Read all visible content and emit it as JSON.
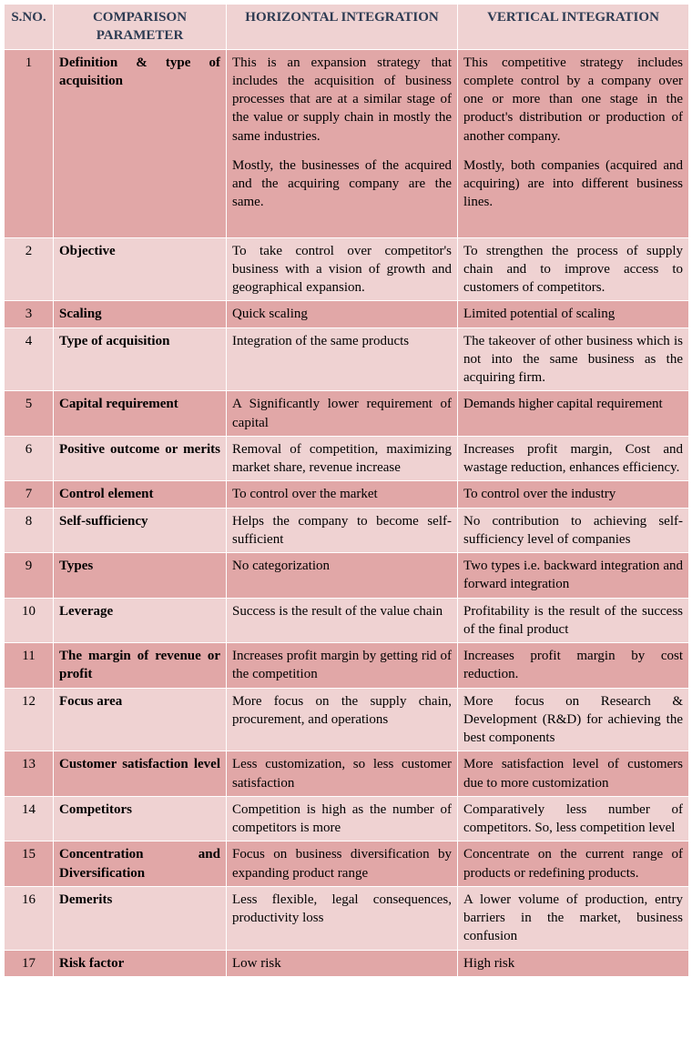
{
  "columns": {
    "sno": "S.NO.",
    "param": "COMPARISON PARAMETER",
    "horizontal": "HORIZONTAL INTEGRATION",
    "vertical": "VERTICAL INTEGRATION"
  },
  "rows": [
    {
      "sno": "1",
      "param": "Definition & type of acquisition",
      "horizontal_p1": "This is an expansion strategy that includes the acquisition of business processes that are at a similar stage of the value or supply chain in mostly the same industries.",
      "horizontal_p2": "Mostly, the businesses of the acquired and the acquiring company are the same.",
      "vertical_p1": "This competitive strategy includes complete control by a company over one or more than one stage in the product's distribution or production of another company.",
      "vertical_p2": "Mostly, both companies (acquired and acquiring) are into different business lines."
    },
    {
      "sno": "2",
      "param": "Objective",
      "horizontal": "To take control over competitor's business with a vision of growth and geographical expansion.",
      "vertical": "To strengthen the process of supply chain and to improve access to customers of competitors."
    },
    {
      "sno": "3",
      "param": "Scaling",
      "horizontal": "Quick scaling",
      "vertical": "Limited potential of scaling"
    },
    {
      "sno": "4",
      "param": "Type of acquisition",
      "horizontal": "Integration of the same products",
      "vertical": "The takeover of other business which is not into the same business as the acquiring firm."
    },
    {
      "sno": "5",
      "param": "Capital requirement",
      "horizontal": "A Significantly lower requirement of capital",
      "vertical": "Demands higher capital requirement"
    },
    {
      "sno": "6",
      "param": "Positive outcome or merits",
      "horizontal": "Removal of competition, maximizing market share, revenue increase",
      "vertical": "Increases profit margin, Cost and wastage reduction, enhances efficiency."
    },
    {
      "sno": "7",
      "param": "Control element",
      "horizontal": "To control over the market",
      "vertical": "To control over the industry"
    },
    {
      "sno": "8",
      "param": "Self-sufficiency",
      "horizontal": "Helps the company to become self-sufficient",
      "vertical": "No contribution to achieving self-sufficiency level of companies"
    },
    {
      "sno": "9",
      "param": "Types",
      "horizontal": "No categorization",
      "vertical": "Two types i.e. backward integration and forward integration"
    },
    {
      "sno": "10",
      "param": "Leverage",
      "horizontal": "Success is the result of the value chain",
      "vertical": "Profitability is the result of the success of the final product"
    },
    {
      "sno": "11",
      "param": "The margin of revenue or profit",
      "horizontal": "Increases profit margin by getting rid of the competition",
      "vertical": "Increases profit margin by cost reduction."
    },
    {
      "sno": "12",
      "param": "Focus area",
      "horizontal": "More focus on the supply chain, procurement, and operations",
      "vertical": "More focus on Research & Development (R&D) for achieving the best components"
    },
    {
      "sno": "13",
      "param": "Customer satisfaction level",
      "horizontal": "Less customization, so less customer satisfaction",
      "vertical": "More satisfaction level of customers due to more customization"
    },
    {
      "sno": "14",
      "param": "Competitors",
      "horizontal": "Competition is high as the number of competitors is more",
      "vertical": "Comparatively less number of competitors. So, less competition level"
    },
    {
      "sno": "15",
      "param": "Concentration and Diversification",
      "horizontal": "Focus on business diversification by expanding product range",
      "vertical": "Concentrate on the current range of products or redefining products."
    },
    {
      "sno": "16",
      "param": "Demerits",
      "horizontal": "Less flexible, legal consequences, productivity loss",
      "vertical": "A lower volume of production, entry barriers in the market, business confusion"
    },
    {
      "sno": "17",
      "param": "Risk factor",
      "horizontal": "Low risk",
      "vertical": "High risk"
    }
  ]
}
